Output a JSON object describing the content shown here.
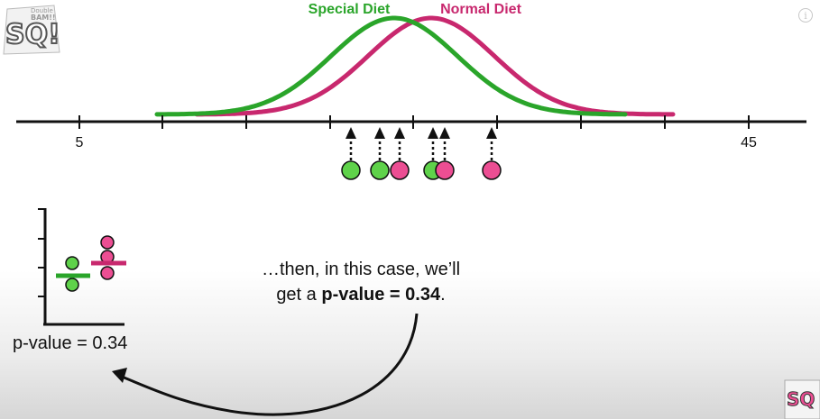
{
  "legend": {
    "special": {
      "label": "Special Diet",
      "color": "#2aa52a"
    },
    "normal": {
      "label": "Normal Diet",
      "color": "#c8286e"
    }
  },
  "axis": {
    "tick_start_label": "5",
    "tick_end_label": "45"
  },
  "caption": {
    "line1": "…then, in this case, we’ll",
    "line2_prefix": "get a ",
    "line2_bold": "p-value = 0.34",
    "line2_suffix": "."
  },
  "inset": {
    "pvalue_label": "p-value = 0.34"
  },
  "point_colors": {
    "green_fill": "#5fd24a",
    "pink_fill": "#ec4e93"
  },
  "icons": {
    "info": "i"
  }
}
